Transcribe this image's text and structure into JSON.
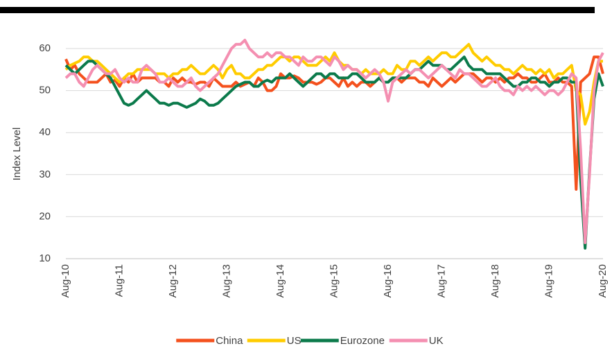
{
  "chart_data": {
    "type": "line",
    "y_label": "Index Level",
    "categories": [
      "Aug-10",
      null,
      null,
      null,
      null,
      null,
      null,
      null,
      null,
      null,
      null,
      null,
      "Aug-11",
      null,
      null,
      null,
      null,
      null,
      null,
      null,
      null,
      null,
      null,
      null,
      "Aug-12",
      null,
      null,
      null,
      null,
      null,
      null,
      null,
      null,
      null,
      null,
      null,
      "Aug-13",
      null,
      null,
      null,
      null,
      null,
      null,
      null,
      null,
      null,
      null,
      null,
      "Aug-14",
      null,
      null,
      null,
      null,
      null,
      null,
      null,
      null,
      null,
      null,
      null,
      "Aug-15",
      null,
      null,
      null,
      null,
      null,
      null,
      null,
      null,
      null,
      null,
      null,
      "Aug-16",
      null,
      null,
      null,
      null,
      null,
      null,
      null,
      null,
      null,
      null,
      null,
      "Aug-17",
      null,
      null,
      null,
      null,
      null,
      null,
      null,
      null,
      null,
      null,
      null,
      "Aug-18",
      null,
      null,
      null,
      null,
      null,
      null,
      null,
      null,
      null,
      null,
      null,
      "Aug-19",
      null,
      null,
      null,
      null,
      null,
      null,
      null,
      null,
      null,
      null,
      null,
      "Aug-20"
    ],
    "series": [
      {
        "name": "China",
        "color": "#f4511e",
        "values": [
          57.5,
          55,
          56,
          54,
          53,
          52,
          52,
          52,
          53,
          54,
          52,
          52.5,
          51,
          53,
          52,
          54,
          52,
          53,
          53,
          53,
          53,
          52,
          52,
          51,
          53,
          52,
          53,
          52,
          52,
          51.5,
          52,
          52,
          51,
          53,
          52,
          51,
          51,
          51,
          52,
          51,
          51.5,
          52,
          51,
          53,
          52,
          50,
          50,
          51,
          54,
          53,
          53,
          53.5,
          53,
          52,
          52,
          52,
          51.5,
          52,
          53,
          53,
          52,
          51,
          53,
          51,
          52,
          51,
          52,
          52,
          51,
          52,
          53,
          52,
          52,
          53,
          53,
          52,
          53,
          53,
          53,
          52,
          52,
          51,
          53,
          52,
          51,
          52,
          53,
          52,
          53,
          54,
          54,
          54,
          53,
          52,
          53,
          53,
          52,
          53,
          52,
          53,
          53,
          54,
          53,
          53,
          52,
          52,
          53,
          54,
          52,
          52,
          53,
          52,
          52,
          51,
          26.5,
          52,
          53,
          54,
          58,
          58,
          54
        ]
      },
      {
        "name": "US",
        "color": "#ffcc00",
        "values": [
          55,
          56,
          56.5,
          57,
          58,
          58,
          57,
          57,
          56,
          55,
          54,
          53,
          52,
          53,
          54,
          54,
          55,
          55,
          55,
          55,
          54,
          54,
          54,
          53,
          54,
          54,
          55,
          55,
          56,
          55,
          54,
          54,
          55,
          56,
          55,
          53,
          55,
          56,
          54,
          54,
          53,
          53,
          54,
          55,
          55,
          56,
          56,
          57,
          58,
          58,
          57,
          58,
          58,
          57,
          56,
          56,
          56,
          57,
          58,
          57,
          59,
          57,
          56,
          56,
          55,
          55,
          54,
          55,
          54,
          54,
          54,
          55,
          54,
          54,
          56,
          55,
          55,
          57,
          57,
          56,
          57,
          58,
          57,
          58,
          59,
          59,
          58,
          58,
          59,
          60,
          61,
          59,
          58,
          57,
          58,
          57,
          56,
          56,
          55,
          55,
          54,
          55,
          56,
          55,
          55,
          54,
          55,
          54,
          55,
          53,
          54,
          54,
          55,
          56,
          50,
          49,
          42,
          45,
          52,
          57,
          57
        ]
      },
      {
        "name": "Eurozone",
        "color": "#0b7a4b",
        "values": [
          56,
          55,
          54,
          55,
          56,
          57,
          57,
          56,
          55,
          54,
          53,
          51,
          49,
          47,
          46.5,
          47,
          48,
          49,
          50,
          49,
          48,
          47,
          47,
          46.5,
          47,
          47,
          46.5,
          46,
          46.5,
          47,
          48,
          47.5,
          46.5,
          46.5,
          47,
          48,
          49,
          50,
          51,
          51.5,
          52,
          52,
          51,
          51,
          52,
          52.5,
          52,
          53,
          53,
          53,
          54,
          53,
          52,
          51,
          52,
          53,
          54,
          54,
          53,
          54,
          54,
          53,
          53,
          53,
          54,
          54,
          53,
          52,
          52,
          52,
          53,
          52,
          52,
          53,
          53,
          53,
          53,
          54,
          55,
          55,
          56,
          57,
          56,
          56,
          56,
          55,
          55,
          56,
          57,
          58,
          56,
          55,
          55,
          55,
          54,
          54,
          54,
          54,
          53,
          52,
          51,
          51,
          52,
          52,
          53,
          53,
          52,
          52,
          51,
          52,
          52,
          53,
          53,
          52,
          52,
          29,
          12.5,
          31,
          48,
          54,
          51
        ]
      },
      {
        "name": "UK",
        "color": "#f48fb1",
        "values": [
          53,
          54,
          54,
          52,
          51,
          53,
          55,
          56,
          55,
          54,
          54,
          55,
          53,
          52,
          53,
          52,
          52,
          55,
          56,
          55,
          54,
          52,
          52,
          53,
          52,
          51,
          51,
          52,
          53,
          51,
          50,
          51,
          52,
          53,
          54,
          56,
          58,
          60,
          61,
          61,
          62,
          60,
          59,
          58,
          58,
          59,
          58,
          59,
          59,
          58,
          58,
          57,
          56,
          58,
          57,
          57,
          58,
          58,
          57,
          56,
          58,
          57,
          55,
          56,
          55,
          55,
          54,
          53,
          54,
          55,
          54,
          52,
          47.5,
          52,
          53,
          54,
          55,
          54,
          55,
          55,
          54,
          53,
          54,
          55,
          56,
          55,
          54,
          53,
          55,
          54,
          54,
          53,
          52,
          51,
          51,
          52,
          53,
          51,
          50,
          50,
          49,
          51,
          50,
          51,
          50,
          51,
          50,
          49,
          50,
          50,
          49,
          50,
          52,
          54,
          53,
          36,
          13.8,
          30,
          50,
          57,
          59
        ]
      }
    ],
    "ylim": [
      10,
      64
    ],
    "yticks": [
      10,
      20,
      30,
      40,
      50,
      60
    ],
    "grid": true,
    "legend": "bottom"
  }
}
